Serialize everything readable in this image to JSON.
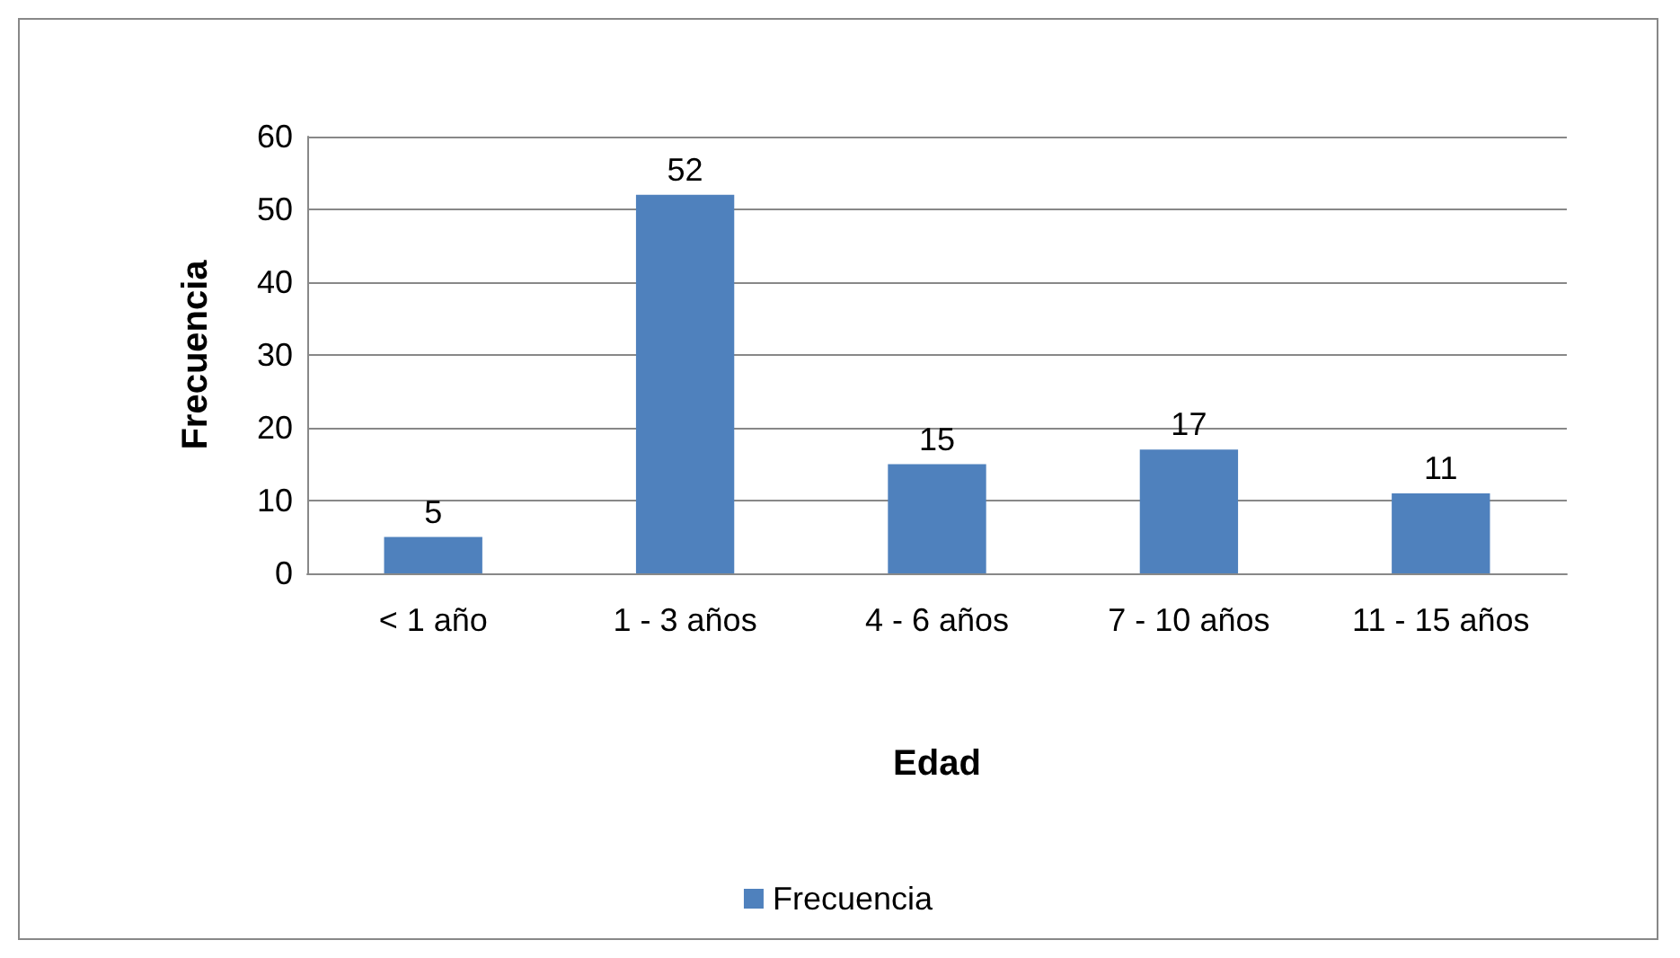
{
  "chart_data": {
    "type": "bar",
    "xlabel": "Edad",
    "ylabel": "Frecuencia",
    "categories": [
      "< 1 año",
      "1 - 3 años",
      "4 - 6 años",
      "7 - 10 años",
      "11 - 15 años"
    ],
    "series": [
      {
        "name": "Frecuencia",
        "color": "#4f81bd",
        "values": [
          5,
          52,
          15,
          17,
          11
        ]
      }
    ],
    "ylim": [
      0,
      60
    ],
    "yticks": [
      0,
      10,
      20,
      30,
      40,
      50,
      60
    ],
    "grid": "y",
    "data_labels": true,
    "legend": "bottom"
  }
}
